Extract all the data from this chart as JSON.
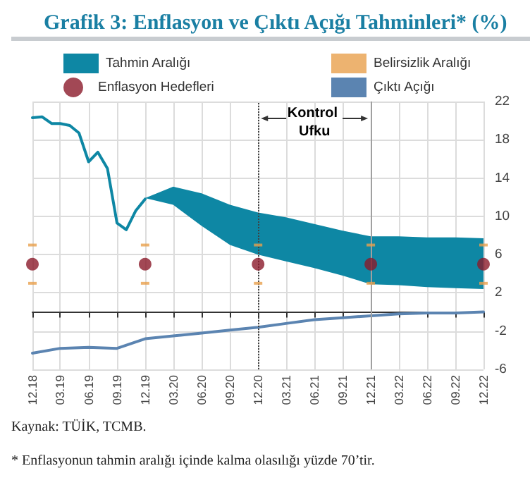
{
  "chart_data": {
    "type": "line",
    "title": "Grafik 3: Enflasyon ve Çıktı Açığı Tahminleri* (%)",
    "xlim": [
      "2018-12",
      "2022-12"
    ],
    "xticks": [
      {
        "value": "2018-12",
        "label": "12.18"
      },
      {
        "value": "2019-03",
        "label": "03.19"
      },
      {
        "value": "2019-06",
        "label": "06.19"
      },
      {
        "value": "2019-09",
        "label": "09.19"
      },
      {
        "value": "2019-12",
        "label": "12.19"
      },
      {
        "value": "2020-03",
        "label": "03.20"
      },
      {
        "value": "2020-06",
        "label": "06.20"
      },
      {
        "value": "2020-09",
        "label": "09.20"
      },
      {
        "value": "2020-12",
        "label": "12.20"
      },
      {
        "value": "2021-03",
        "label": "03.21"
      },
      {
        "value": "2021-06",
        "label": "06.21"
      },
      {
        "value": "2021-09",
        "label": "09.21"
      },
      {
        "value": "2021-12",
        "label": "12.21"
      },
      {
        "value": "2022-03",
        "label": "03.22"
      },
      {
        "value": "2022-06",
        "label": "06.22"
      },
      {
        "value": "2022-09",
        "label": "09.22"
      },
      {
        "value": "2022-12",
        "label": "12.22"
      }
    ],
    "ylim": [
      -6,
      22
    ],
    "yticks": [
      -6,
      -2,
      2,
      6,
      10,
      14,
      18,
      22
    ],
    "grid": true,
    "legend": "top",
    "series": [
      {
        "name": "Tahmin Aralığı",
        "type": "area",
        "color": "#0e87a4",
        "values": [
          null,
          null,
          null,
          null,
          null,
          null,
          null,
          null,
          null,
          null,
          null,
          null,
          null
        ],
        "x": [
          "2019-12",
          "2020-03",
          "2020-06",
          "2020-09",
          "2020-12",
          "2021-03",
          "2021-06",
          "2021-09",
          "2021-12",
          "2022-03",
          "2022-06",
          "2022-09",
          "2022-12"
        ],
        "upper": [
          11.9,
          13.1,
          12.4,
          11.2,
          10.4,
          9.9,
          9.2,
          8.5,
          7.9,
          7.9,
          7.8,
          7.8,
          7.7
        ],
        "lower": [
          11.9,
          11.2,
          9.0,
          7.0,
          6.0,
          5.3,
          4.6,
          3.8,
          2.9,
          2.8,
          2.6,
          2.5,
          2.4
        ]
      },
      {
        "name": "Belirsizlik Aralığı",
        "type": "scatter",
        "color": "#e8a04c",
        "x": [
          "2018-12",
          "2018-12",
          "2019-12",
          "2019-12",
          "2020-12",
          "2020-12",
          "2021-12",
          "2021-12",
          "2022-12",
          "2022-12"
        ],
        "values": [
          7,
          3,
          7,
          3,
          7,
          3,
          7,
          3,
          7,
          3
        ]
      },
      {
        "name": "Enflasyon Hedefleri",
        "type": "scatter",
        "color": "#8b1a2b",
        "marker": "circle",
        "x": [
          "2018-12",
          "2019-12",
          "2020-12",
          "2021-12",
          "2022-12"
        ],
        "values": [
          5,
          5,
          5,
          5,
          5
        ]
      },
      {
        "name": "Çıktı Açığı",
        "type": "line",
        "color": "#5b84b1",
        "x": [
          "2018-12",
          "2019-03",
          "2019-06",
          "2019-09",
          "2019-12",
          "2020-03",
          "2020-06",
          "2020-09",
          "2020-12",
          "2021-03",
          "2021-06",
          "2021-09",
          "2021-12",
          "2022-03",
          "2022-06",
          "2022-09",
          "2022-12"
        ],
        "values": [
          -4.3,
          -3.8,
          -3.7,
          -3.8,
          -2.8,
          -2.5,
          -2.2,
          -1.9,
          -1.6,
          -1.2,
          -0.8,
          -0.6,
          -0.4,
          -0.2,
          -0.1,
          -0.1,
          0.0
        ]
      },
      {
        "color": "#0e87a4",
        "x": [
          "2018-12",
          "2019-01",
          "2019-02",
          "2019-03",
          "2019-04",
          "2019-05",
          "2019-06",
          "2019-07",
          "2019-08",
          "2019-09",
          "2019-10",
          "2019-11",
          "2019-12"
        ],
        "values": [
          20.3,
          20.4,
          19.7,
          19.7,
          19.5,
          18.7,
          15.7,
          16.7,
          15.0,
          9.3,
          8.6,
          10.6,
          11.8
        ]
      }
    ],
    "ref_lines": [
      {
        "axis": "x",
        "value": "2020-12",
        "color": "#404040",
        "line_style": "dotted"
      },
      {
        "axis": "x",
        "value": "2021-12",
        "color": "#a0a0a0",
        "line_style": "solid"
      }
    ],
    "annotations": [
      "Kontrol Ufku",
      "Kaynak: TÜİK, TCMB.",
      "* Enflasyonun tahmin aralığı içinde kalma olasılığı yüzde 70’tir."
    ]
  }
}
